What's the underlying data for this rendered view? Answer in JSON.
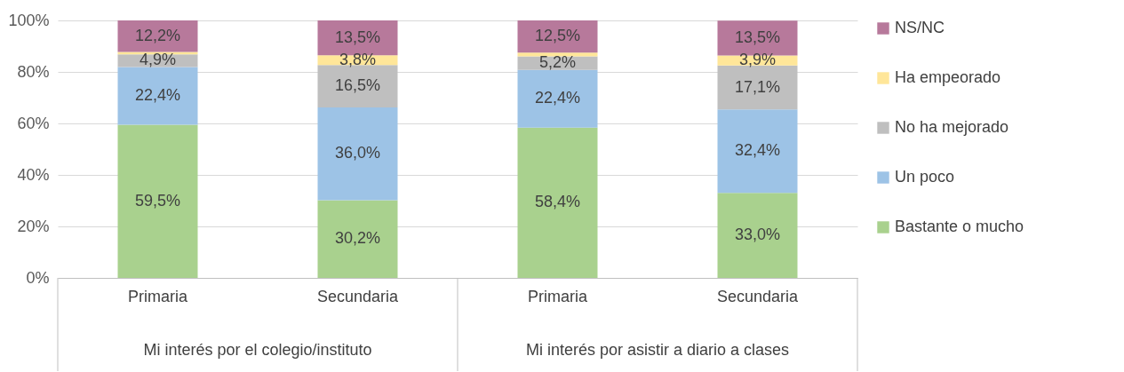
{
  "chart_data": {
    "type": "bar",
    "stacked": true,
    "categories": [
      "Primaria",
      "Secundaria",
      "Primaria",
      "Secundaria"
    ],
    "annotations": [
      "Mi interés por el colegio/instituto",
      "Mi interés por asistir a diario a clases"
    ],
    "series": [
      {
        "name": "Bastante o mucho",
        "color": "#a9d18e",
        "values": [
          59.5,
          30.2,
          58.4,
          33.0
        ],
        "value_labels": [
          "59,5%",
          "30,2%",
          "58,4%",
          "33,0%"
        ]
      },
      {
        "name": "Un poco",
        "color": "#9dc3e6",
        "values": [
          22.4,
          36.0,
          22.4,
          32.4
        ],
        "value_labels": [
          "22,4%",
          "36,0%",
          "22,4%",
          "32,4%"
        ]
      },
      {
        "name": "No ha mejorado",
        "color": "#bfbfbf",
        "values": [
          4.9,
          16.5,
          5.2,
          17.1
        ],
        "value_labels": [
          "4,9%",
          "16,5%",
          "5,2%",
          "17,1%"
        ]
      },
      {
        "name": "Ha empeorado",
        "color": "#ffe699",
        "values": [
          1.0,
          3.8,
          1.5,
          3.9
        ],
        "value_labels": [
          null,
          "3,8%",
          null,
          "3,9%"
        ]
      },
      {
        "name": "NS/NC",
        "color": "#b7799b",
        "values": [
          12.2,
          13.5,
          12.5,
          13.5
        ],
        "value_labels": [
          "12,2%",
          "13,5%",
          "12,5%",
          "13,5%"
        ]
      }
    ],
    "ylim": [
      0,
      100
    ],
    "yticks": [
      {
        "value": 0,
        "label": "0%"
      },
      {
        "value": 20,
        "label": "20%"
      },
      {
        "value": 40,
        "label": "40%"
      },
      {
        "value": 60,
        "label": "60%"
      },
      {
        "value": 80,
        "label": "80%"
      },
      {
        "value": 100,
        "label": "100%"
      }
    ],
    "grid": "y",
    "legend": "right"
  }
}
